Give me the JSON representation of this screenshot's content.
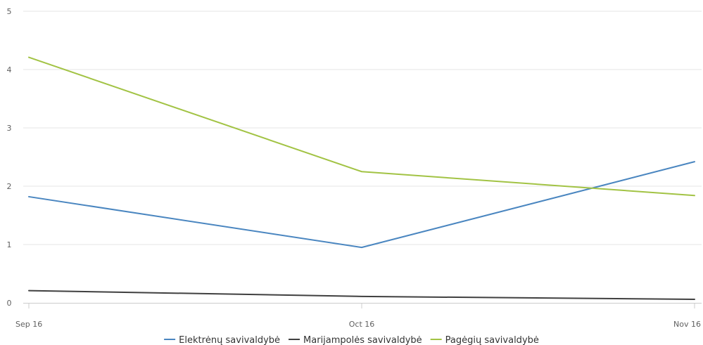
{
  "chart_data": {
    "type": "line",
    "title": "",
    "xlabel": "",
    "ylabel": "",
    "x": [
      "Sep 16",
      "Oct 16",
      "Nov 16"
    ],
    "ylim": [
      0,
      5
    ],
    "yticks": [
      "0",
      "1",
      "2",
      "3",
      "4",
      "5"
    ],
    "grid": true,
    "legend_position": "bottom-center",
    "series": [
      {
        "name": "Elektrėnų savivaldybė",
        "color": "#4a86c0",
        "values": [
          1.82,
          0.95,
          2.42
        ]
      },
      {
        "name": "Marijampolės savivaldybė",
        "color": "#404040",
        "values": [
          0.21,
          0.11,
          0.06
        ]
      },
      {
        "name": "Pagėgių savivaldybė",
        "color": "#a2c344",
        "values": [
          4.21,
          2.25,
          1.84
        ]
      }
    ]
  }
}
